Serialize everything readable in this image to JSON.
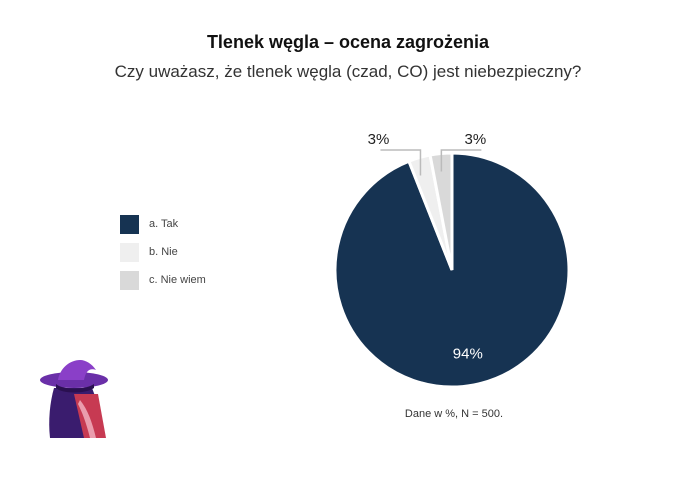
{
  "chart_data": {
    "type": "pie",
    "title": "Tlenek węgla – ocena zagrożenia",
    "subtitle": "Czy uważasz, że tlenek węgla (czad, CO) jest niebezpieczny?",
    "categories": [
      "a. Tak",
      "b. Nie",
      "c. Nie wiem"
    ],
    "values": [
      94,
      3,
      3
    ],
    "labels": [
      "94%",
      "3%",
      "3%"
    ],
    "colors": [
      "#163352",
      "#efefef",
      "#d9d9d9"
    ],
    "legend_position": "left",
    "note": "Dane w %, N = 500."
  }
}
